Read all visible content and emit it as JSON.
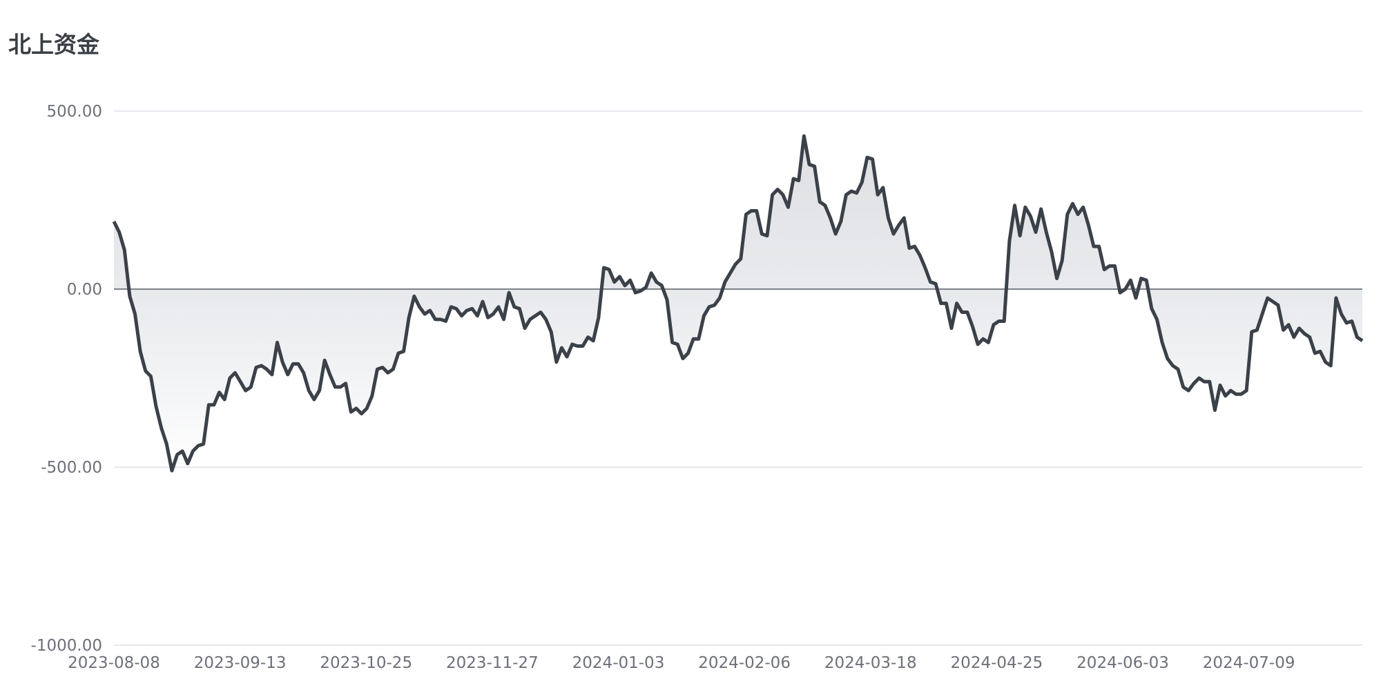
{
  "chart_data": {
    "type": "area",
    "title": "北上资金",
    "xlabel": "",
    "ylabel": "",
    "ylim": [
      -1000,
      500
    ],
    "yticks": [
      "500.00",
      "0.00",
      "-500.00",
      "-1000.00"
    ],
    "ytick_values": [
      500,
      0,
      -500,
      -1000
    ],
    "xticks": [
      "2023-08-08",
      "2023-09-13",
      "2023-10-25",
      "2023-11-27",
      "2024-01-03",
      "2024-02-06",
      "2024-03-18",
      "2024-04-25",
      "2024-06-03",
      "2024-07-09"
    ],
    "x_start": "2023-08-08",
    "grid": true,
    "colors": {
      "line": "#3b4149",
      "fill_top": "#e4e6e9",
      "fill_bottom": "#ffffff",
      "grid": "#dfe1ea",
      "zero_line": "#555b63"
    },
    "series": [
      {
        "name": "",
        "values": [
          190,
          160,
          110,
          -20,
          -70,
          -175,
          -230,
          -245,
          -330,
          -390,
          -435,
          -510,
          -465,
          -455,
          -490,
          -455,
          -440,
          -435,
          -325,
          -325,
          -290,
          -310,
          -250,
          -235,
          -260,
          -285,
          -275,
          -220,
          -215,
          -225,
          -240,
          -150,
          -205,
          -240,
          -210,
          -210,
          -235,
          -285,
          -310,
          -285,
          -200,
          -240,
          -275,
          -275,
          -265,
          -345,
          -335,
          -350,
          -335,
          -300,
          -225,
          -220,
          -235,
          -225,
          -180,
          -175,
          -80,
          -20,
          -50,
          -70,
          -60,
          -85,
          -85,
          -90,
          -50,
          -55,
          -75,
          -60,
          -55,
          -75,
          -35,
          -80,
          -70,
          -50,
          -85,
          -10,
          -50,
          -55,
          -110,
          -85,
          -75,
          -65,
          -85,
          -120,
          -205,
          -165,
          -190,
          -155,
          -160,
          -160,
          -135,
          -145,
          -80,
          60,
          55,
          20,
          35,
          10,
          25,
          -10,
          -5,
          5,
          45,
          20,
          10,
          -30,
          -150,
          -155,
          -195,
          -180,
          -140,
          -140,
          -75,
          -50,
          -45,
          -25,
          20,
          45,
          70,
          85,
          210,
          220,
          220,
          155,
          150,
          265,
          280,
          265,
          230,
          310,
          305,
          430,
          350,
          345,
          245,
          235,
          200,
          155,
          190,
          265,
          275,
          270,
          300,
          370,
          365,
          265,
          285,
          200,
          155,
          180,
          200,
          115,
          120,
          95,
          60,
          20,
          15,
          -40,
          -40,
          -110,
          -40,
          -65,
          -65,
          -105,
          -155,
          -140,
          -150,
          -100,
          -90,
          -90,
          135,
          235,
          150,
          230,
          205,
          160,
          225,
          160,
          105,
          30,
          80,
          210,
          240,
          210,
          230,
          180,
          120,
          120,
          55,
          65,
          65,
          -10,
          0,
          25,
          -25,
          30,
          25,
          -55,
          -85,
          -150,
          -195,
          -215,
          -225,
          -275,
          -285,
          -265,
          -250,
          -260,
          -260,
          -340,
          -270,
          -300,
          -285,
          -295,
          -295,
          -285,
          -120,
          -115,
          -70,
          -25,
          -35,
          -45,
          -115,
          -100,
          -135,
          -110,
          -125,
          -135,
          -180,
          -175,
          -205,
          -215,
          -25,
          -70,
          -95,
          -90,
          -135,
          -145
        ]
      }
    ]
  }
}
